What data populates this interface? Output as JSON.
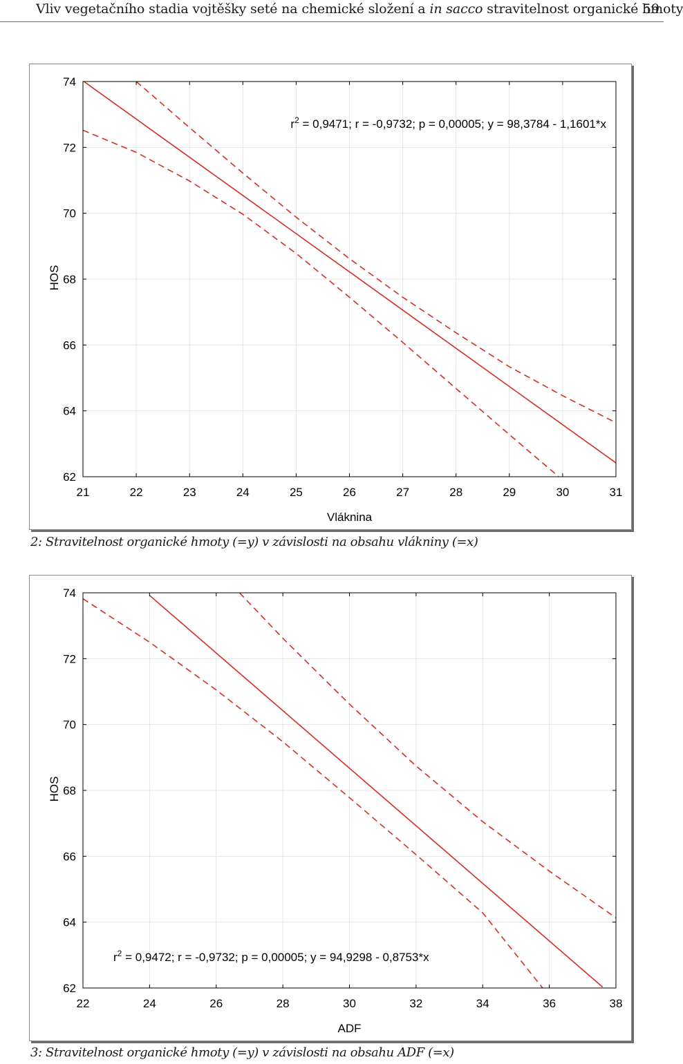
{
  "header": {
    "title_pre": "Vliv vegetačního stadia vojtěšky seté na chemické složení a ",
    "title_italic": "in sacco",
    "title_post": " stravitelnost organické hmoty",
    "page_number": "59"
  },
  "chart_data": [
    {
      "type": "line",
      "caption": "2: Stravitelnost organické hmoty (=y) v závislosti na obsahu vlákniny (=x)",
      "xlabel": "Vláknina",
      "ylabel": "HOS",
      "xlim": [
        21,
        31
      ],
      "ylim": [
        62,
        74
      ],
      "xticks": [
        "21",
        "22",
        "23",
        "24",
        "25",
        "26",
        "27",
        "28",
        "29",
        "30",
        "31"
      ],
      "yticks": [
        "74",
        "72",
        "70",
        "68",
        "66",
        "64",
        "62"
      ],
      "grid": true,
      "annotation": {
        "r2_prefix": "r",
        "r2_sup": "2",
        "text": " = 0,9471;  r = -0,9732; p = 0,00005;  y = 98,3784 - 1,1601*x",
        "placement": "top-right"
      },
      "colors": {
        "series": "#d42e20",
        "grid": "#e4e4e4",
        "axis": "#000000"
      },
      "series": [
        {
          "style": "solid",
          "points": [
            [
              21,
              74.02
            ],
            [
              31,
              62.42
            ]
          ]
        },
        {
          "style": "dashed",
          "points": [
            [
              22,
              74.0
            ],
            [
              23,
              72.6
            ],
            [
              24,
              71.22
            ],
            [
              25,
              69.88
            ],
            [
              26,
              68.62
            ],
            [
              27,
              67.45
            ],
            [
              28,
              66.37
            ],
            [
              29,
              65.34
            ],
            [
              30,
              64.46
            ],
            [
              31,
              63.64
            ]
          ]
        },
        {
          "style": "dashed",
          "points": [
            [
              21,
              72.52
            ],
            [
              22,
              71.85
            ],
            [
              23,
              70.98
            ],
            [
              24,
              69.97
            ],
            [
              25,
              68.78
            ],
            [
              26,
              67.45
            ],
            [
              27,
              66.08
            ],
            [
              28,
              64.68
            ],
            [
              29,
              63.28
            ],
            [
              30,
              61.9
            ]
          ]
        }
      ]
    },
    {
      "type": "line",
      "caption": "3: Stravitelnost organické hmoty (=y) v závislosti na obsahu ADF (=x)",
      "xlabel": "ADF",
      "ylabel": "HOS",
      "xlim": [
        22,
        38
      ],
      "ylim": [
        62,
        74
      ],
      "xticks": [
        "22",
        "24",
        "26",
        "28",
        "30",
        "32",
        "34",
        "36",
        "38"
      ],
      "yticks": [
        "74",
        "72",
        "70",
        "68",
        "66",
        "64",
        "62"
      ],
      "grid": true,
      "annotation": {
        "r2_prefix": "r",
        "r2_sup": "2",
        "text": " = 0,9472;  r = -0,9732; p = 0,00005;  y = 94,9298 - 0,8753*x",
        "placement": "bottom-left"
      },
      "colors": {
        "series": "#d42e20",
        "grid": "#e4e4e4",
        "axis": "#000000"
      },
      "series": [
        {
          "style": "solid",
          "points": [
            [
              24,
              73.92
            ],
            [
              37.6,
              62.03
            ]
          ]
        },
        {
          "style": "dashed",
          "points": [
            [
              26.7,
              74.0
            ],
            [
              28,
              72.62
            ],
            [
              30,
              70.62
            ],
            [
              32,
              68.74
            ],
            [
              34,
              67.05
            ],
            [
              36,
              65.55
            ],
            [
              38,
              64.13
            ]
          ]
        },
        {
          "style": "dashed",
          "points": [
            [
              22,
              73.82
            ],
            [
              24,
              72.5
            ],
            [
              26,
              71.05
            ],
            [
              28,
              69.48
            ],
            [
              30,
              67.78
            ],
            [
              32,
              66.05
            ],
            [
              34,
              64.28
            ],
            [
              35.8,
              62.0
            ]
          ]
        }
      ]
    }
  ]
}
